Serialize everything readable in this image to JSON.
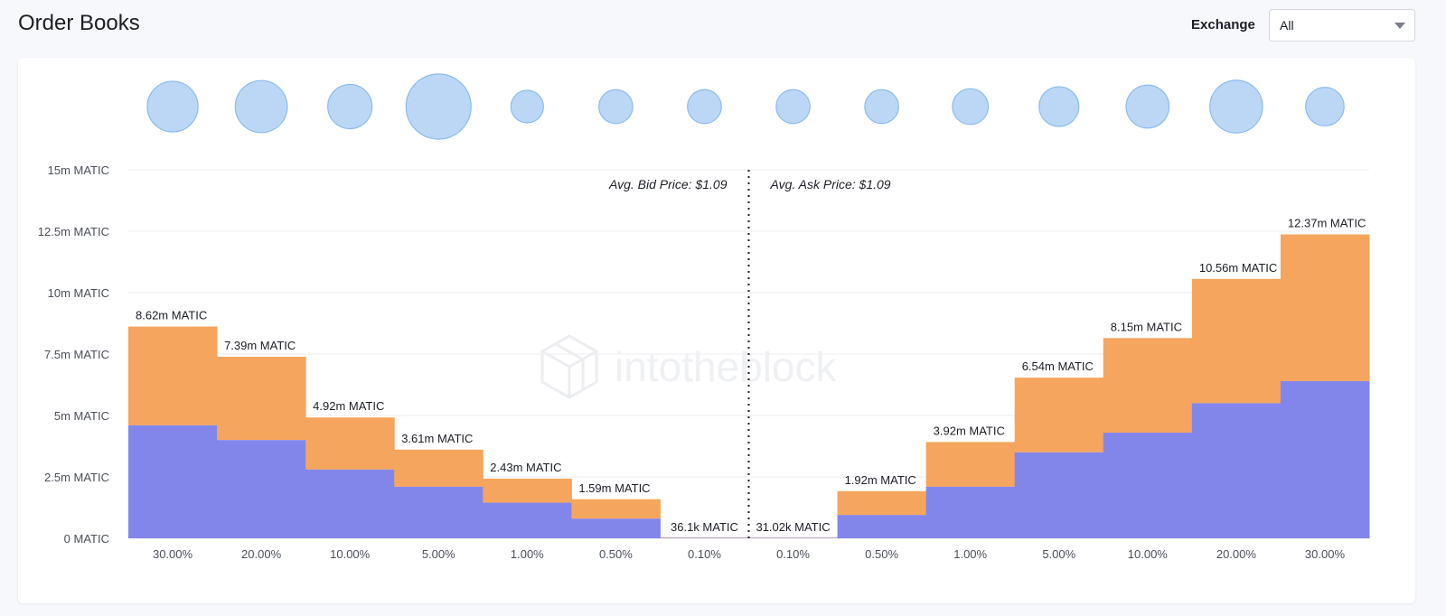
{
  "header": {
    "title": "Order Books",
    "exchange_label": "Exchange",
    "exchange_value": "All"
  },
  "watermark": "intotheblock",
  "colors": {
    "bid_lower": "#8286ea",
    "bid_upper": "#f5a55d",
    "bubble_fill": "#bcd7f6",
    "bubble_stroke": "#8dbbec",
    "grid": "#eceef2",
    "axis_text": "#4a4f5a"
  },
  "chart_data": {
    "type": "bar",
    "stacked": true,
    "y_ticks": [
      "0 MATIC",
      "2.5m MATIC",
      "5m MATIC",
      "7.5m MATIC",
      "10m MATIC",
      "12.5m MATIC",
      "15m MATIC"
    ],
    "ylim": [
      0,
      15
    ],
    "y_unit": "m MATIC",
    "grid": true,
    "categories": [
      "30.00%",
      "20.00%",
      "10.00%",
      "5.00%",
      "1.00%",
      "0.50%",
      "0.10%",
      "0.10%",
      "0.50%",
      "1.00%",
      "5.00%",
      "10.00%",
      "20.00%",
      "30.00%"
    ],
    "totals": [
      8.62,
      7.39,
      4.92,
      3.61,
      2.43,
      1.59,
      0.0361,
      0.03102,
      1.92,
      3.92,
      6.54,
      8.15,
      10.56,
      12.37
    ],
    "total_labels": [
      "8.62m MATIC",
      "7.39m MATIC",
      "4.92m MATIC",
      "3.61m MATIC",
      "2.43m MATIC",
      "1.59m MATIC",
      "36.1k MATIC",
      "31.02k MATIC",
      "1.92m MATIC",
      "3.92m MATIC",
      "6.54m MATIC",
      "8.15m MATIC",
      "10.56m MATIC",
      "12.37m MATIC"
    ],
    "lower_values": [
      4.6,
      4.0,
      2.8,
      2.1,
      1.45,
      0.8,
      0.02,
      0.02,
      0.95,
      2.1,
      3.5,
      4.3,
      5.5,
      6.4
    ],
    "bubble_relative_sizes": [
      0.78,
      0.8,
      0.68,
      1.0,
      0.5,
      0.52,
      0.52,
      0.52,
      0.52,
      0.55,
      0.61,
      0.66,
      0.81,
      0.59
    ],
    "annotations": {
      "bid": "Avg. Bid Price: $1.09",
      "ask": "Avg. Ask Price: $1.09"
    }
  }
}
